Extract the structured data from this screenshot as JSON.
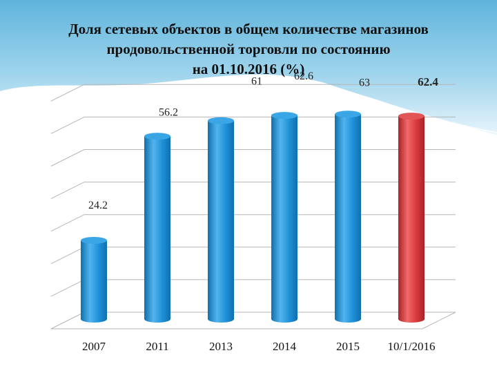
{
  "title_lines": [
    "Доля сетевых объектов в общем количестве магазинов",
    "продовольственной торговли по состоянию",
    "на 01.10.2016 (%)"
  ],
  "colors": {
    "bar_blue": "#1e8fd6",
    "bar_highlight": "#d8393b",
    "header_band": "#7fc4e3",
    "gridline": "#b5b5b5"
  },
  "chart_data": {
    "type": "bar",
    "title": "Доля сетевых объектов в общем количестве магазинов продовольственной торговли по состоянию на 01.10.2016 (%)",
    "categories": [
      "2007",
      "2011",
      "2013",
      "2014",
      "2015",
      "10/1/2016"
    ],
    "values": [
      24.2,
      56.2,
      61,
      62.6,
      63,
      62.4
    ],
    "data_labels": [
      "24.2",
      "56.2",
      "61",
      "62.6",
      "63",
      "62.4"
    ],
    "highlight_index": 5,
    "style": "3d-cylinder",
    "xlabel": "",
    "ylabel": "",
    "ylim": [
      0,
      70
    ],
    "grid": true,
    "legend": "none"
  }
}
